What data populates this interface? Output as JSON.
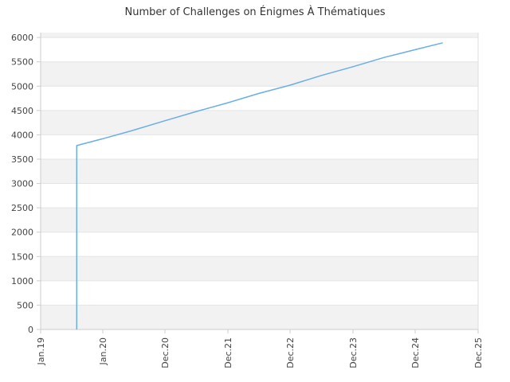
{
  "chart_data": {
    "type": "line",
    "title": "Number of Challenges on Énigmes À Thématiques",
    "xlabel": "",
    "ylabel": "",
    "x_tick_labels": [
      "Jan.19",
      "Jan.20",
      "Dec.20",
      "Dec.21",
      "Dec.22",
      "Dec.23",
      "Dec.24",
      "Dec.25"
    ],
    "y_tick_labels": [
      "0",
      "500",
      "1000",
      "1500",
      "2000",
      "2500",
      "3000",
      "3500",
      "4000",
      "4500",
      "5000",
      "5500",
      "6000"
    ],
    "ylim": [
      0,
      6100
    ],
    "xlim": [
      "2019-01-01",
      "2025-12-01"
    ],
    "grid": "horizontal alternating bands",
    "legend": "none",
    "colors": {
      "line": "#6aaee8",
      "band": "#f2f2f2",
      "axis": "#cccccc"
    },
    "series": [
      {
        "points": [
          {
            "x": "2019-08-01",
            "y": 0
          },
          {
            "x": "2019-08-01",
            "y": 3780
          },
          {
            "x": "2020-01-01",
            "y": 3920
          },
          {
            "x": "2020-06-01",
            "y": 4080
          },
          {
            "x": "2020-12-01",
            "y": 4290
          },
          {
            "x": "2021-06-01",
            "y": 4480
          },
          {
            "x": "2021-12-01",
            "y": 4660
          },
          {
            "x": "2022-06-01",
            "y": 4850
          },
          {
            "x": "2022-12-01",
            "y": 5020
          },
          {
            "x": "2023-06-01",
            "y": 5220
          },
          {
            "x": "2023-12-01",
            "y": 5400
          },
          {
            "x": "2024-06-01",
            "y": 5590
          },
          {
            "x": "2024-12-01",
            "y": 5750
          },
          {
            "x": "2025-05-10",
            "y": 5890
          }
        ]
      }
    ]
  }
}
